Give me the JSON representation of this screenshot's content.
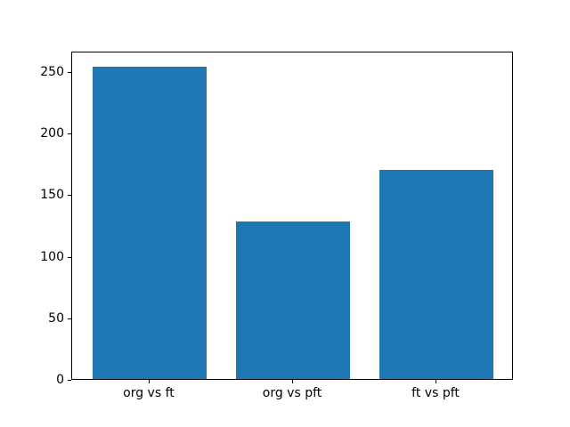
{
  "chart_data": {
    "type": "bar",
    "categories": [
      "org vs ft",
      "org vs pft",
      "ft vs pft"
    ],
    "values": [
      254,
      128,
      170
    ],
    "title": "",
    "xlabel": "",
    "ylabel": "",
    "ylim": [
      0,
      266.7
    ],
    "yticks": [
      0,
      50,
      100,
      150,
      200,
      250
    ],
    "bar_width_fraction": 0.8,
    "grid": false,
    "legend": null,
    "colors": {
      "bar": "#1f77b4",
      "axis": "#000000",
      "text": "#000000",
      "background": "#ffffff"
    }
  }
}
